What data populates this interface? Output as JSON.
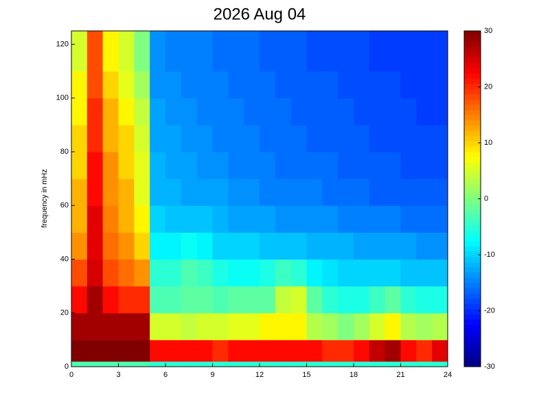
{
  "chart_data": {
    "type": "heatmap",
    "title": "2026 Aug 04",
    "y_label": "frequency in mHz",
    "x": [
      0,
      1,
      2,
      3,
      4,
      5,
      6,
      7,
      8,
      9,
      10,
      11,
      12,
      13,
      14,
      15,
      16,
      17,
      18,
      19,
      20,
      21,
      22,
      23,
      24
    ],
    "y": [
      0,
      2,
      10,
      20,
      30,
      40,
      50,
      60,
      70,
      80,
      90,
      100,
      110,
      125
    ],
    "z": [
      [
        -3,
        -3,
        -3,
        -3,
        -3,
        -5,
        -5,
        -5,
        -5,
        -5,
        -5,
        -5,
        -5,
        -5,
        -5,
        -5,
        -5,
        -5,
        -5,
        -5,
        -5,
        -5,
        -5,
        -5
      ],
      [
        30,
        30,
        30,
        30,
        30,
        22,
        22,
        22,
        22,
        20,
        22,
        22,
        22,
        22,
        22,
        22,
        20,
        20,
        22,
        26,
        28,
        22,
        20,
        24
      ],
      [
        28,
        28,
        28,
        28,
        28,
        5,
        5,
        4,
        5,
        5,
        6,
        6,
        8,
        8,
        8,
        3,
        2,
        0,
        2,
        5,
        8,
        3,
        2,
        3
      ],
      [
        22,
        28,
        22,
        20,
        20,
        -3,
        -3,
        -2,
        -2,
        -3,
        -2,
        -2,
        -2,
        4,
        5,
        -2,
        -5,
        -6,
        -6,
        -4,
        -2,
        -5,
        -6,
        -6
      ],
      [
        18,
        25,
        18,
        16,
        14,
        -5,
        -5,
        -3,
        -4,
        -6,
        -7,
        -7,
        -6,
        -4,
        -5,
        -8,
        -9,
        -10,
        -10,
        -10,
        -10,
        -11,
        -11,
        -11
      ],
      [
        14,
        24,
        16,
        14,
        10,
        -8,
        -8,
        -7,
        -8,
        -10,
        -10,
        -10,
        -11,
        -11,
        -11,
        -12,
        -12,
        -12,
        -13,
        -13,
        -13,
        -13,
        -14,
        -14
      ],
      [
        12,
        24,
        15,
        12,
        8,
        -10,
        -11,
        -11,
        -11,
        -12,
        -13,
        -13,
        -13,
        -14,
        -14,
        -14,
        -14,
        -15,
        -15,
        -15,
        -15,
        -16,
        -16,
        -16
      ],
      [
        12,
        22,
        14,
        12,
        6,
        -12,
        -12,
        -13,
        -13,
        -13,
        -14,
        -14,
        -15,
        -15,
        -15,
        -15,
        -16,
        -16,
        -16,
        -17,
        -17,
        -17,
        -17,
        -17
      ],
      [
        10,
        22,
        14,
        10,
        6,
        -12,
        -13,
        -13,
        -14,
        -14,
        -15,
        -15,
        -15,
        -16,
        -16,
        -16,
        -16,
        -17,
        -17,
        -17,
        -17,
        -18,
        -18,
        -18
      ],
      [
        10,
        20,
        12,
        10,
        5,
        -13,
        -13,
        -14,
        -14,
        -15,
        -15,
        -15,
        -16,
        -16,
        -16,
        -17,
        -17,
        -17,
        -17,
        -18,
        -18,
        -18,
        -18,
        -18
      ],
      [
        8,
        20,
        12,
        8,
        4,
        -13,
        -14,
        -14,
        -15,
        -15,
        -15,
        -16,
        -16,
        -16,
        -17,
        -17,
        -17,
        -17,
        -18,
        -18,
        -18,
        -18,
        -19,
        -19
      ],
      [
        8,
        18,
        10,
        6,
        2,
        -14,
        -14,
        -15,
        -15,
        -15,
        -16,
        -16,
        -16,
        -17,
        -17,
        -17,
        -17,
        -18,
        -18,
        -18,
        -18,
        -19,
        -19,
        -19
      ],
      [
        5,
        18,
        8,
        5,
        0,
        -14,
        -15,
        -15,
        -15,
        -16,
        -16,
        -16,
        -17,
        -17,
        -17,
        -18,
        -18,
        -18,
        -18,
        -19,
        -19,
        -19,
        -19,
        -19
      ]
    ],
    "xlim": [
      0,
      24
    ],
    "ylim": [
      0,
      125
    ],
    "xticks": [
      0,
      3,
      6,
      9,
      12,
      15,
      18,
      21,
      24
    ],
    "yticks": [
      0,
      20,
      40,
      60,
      80,
      100,
      120
    ],
    "colormap": "jet",
    "clim": [
      -30,
      30
    ],
    "cticks": [
      -30,
      -20,
      -10,
      0,
      10,
      20,
      30
    ]
  }
}
